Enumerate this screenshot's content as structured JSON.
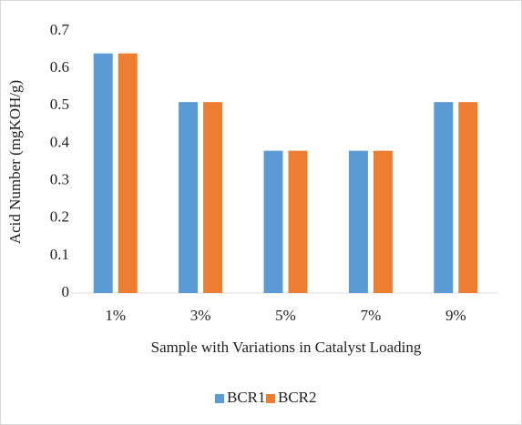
{
  "chart_data": {
    "type": "bar",
    "x_label": "Sample with Variations in Catalyst Loading",
    "y_label": "Acid Number (mgKOH/g)",
    "categories": [
      "1%",
      "3%",
      "5%",
      "7%",
      "9%"
    ],
    "series": [
      {
        "name": "BCR1",
        "color": "#5b9bd5",
        "values": [
          0.64,
          0.51,
          0.38,
          0.38,
          0.51
        ]
      },
      {
        "name": "BCR2",
        "color": "#ed7d31",
        "values": [
          0.64,
          0.51,
          0.38,
          0.38,
          0.51
        ]
      }
    ],
    "ylim": [
      0,
      0.7
    ],
    "yticks": [
      0,
      0.1,
      0.2,
      0.3,
      0.4,
      0.5,
      0.6,
      0.7
    ],
    "grid": false,
    "legend": "bottom"
  }
}
